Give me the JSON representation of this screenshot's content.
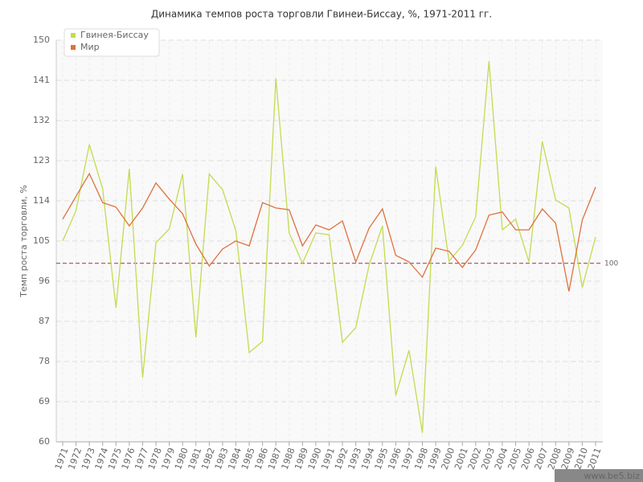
{
  "chart_data": {
    "type": "line",
    "title": "Динамика темпов роста торговли Гвинеи-Биссау, %, 1971-2011 гг.",
    "y_label": "Темп роста торговли, %",
    "categories": [
      "1971",
      "1972",
      "1973",
      "1974",
      "1975",
      "1976",
      "1977",
      "1978",
      "1979",
      "1980",
      "1981",
      "1982",
      "1983",
      "1984",
      "1985",
      "1986",
      "1987",
      "1988",
      "1989",
      "1990",
      "1991",
      "1992",
      "1993",
      "1994",
      "1995",
      "1996",
      "1997",
      "1998",
      "1999",
      "2000",
      "2001",
      "2002",
      "2003",
      "2004",
      "2005",
      "2006",
      "2007",
      "2008",
      "2009",
      "2010",
      "2011"
    ],
    "series": [
      {
        "name": "Гвинея-Биссау",
        "color": "#c2dc50",
        "values": [
          105,
          111.8,
          126.6,
          116.7,
          90,
          121.2,
          74.4,
          104.6,
          107.7,
          120,
          83.4,
          120,
          116.5,
          107.3,
          80,
          82.5,
          141.5,
          106.8,
          100,
          106.8,
          106.4,
          82.3,
          85.6,
          99.6,
          108.4,
          70.4,
          80.5,
          62,
          121.7,
          100.5,
          104,
          110.4,
          145.3,
          107.5,
          109.9,
          100.3,
          127.3,
          114.2,
          112.4,
          94.6,
          105.9
        ]
      },
      {
        "name": "Мир",
        "color": "#e0703c",
        "values": [
          109.9,
          115,
          120.1,
          113.6,
          112.6,
          108.4,
          112.4,
          118,
          114.4,
          111.1,
          104.3,
          99.4,
          103.2,
          105,
          103.9,
          113.6,
          112.4,
          112,
          103.9,
          108.6,
          107.5,
          109.5,
          100.3,
          107.9,
          112.2,
          101.8,
          100.3,
          96.9,
          103.4,
          102.7,
          99.1,
          103,
          110.8,
          111.5,
          107.5,
          107.5,
          112.2,
          109,
          93.7,
          109.7,
          117.1
        ]
      }
    ],
    "reference_line": 100,
    "reference_color": "#8b3a4a",
    "ylim": [
      60,
      150
    ],
    "yticks": [
      60,
      69,
      78,
      87,
      96,
      105,
      114,
      123,
      132,
      141,
      150
    ],
    "grid": true,
    "legend": "top-left",
    "watermark": "www.be5.biz"
  }
}
